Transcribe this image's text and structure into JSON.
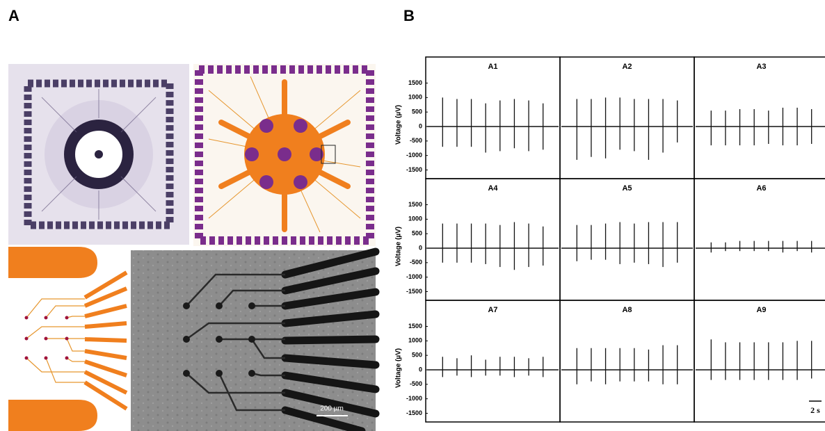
{
  "figure": {
    "panel_a_label": "A",
    "panel_b_label": "B",
    "scale_bar_a": "200 µm",
    "scale_bar_b": "2 s"
  },
  "chart_data": {
    "type": "spikes",
    "y_label": "Voltage (µV)",
    "ylim": [
      -1800,
      2400
    ],
    "yticks": [
      -1500,
      -1000,
      -500,
      0,
      500,
      1000,
      1500
    ],
    "panels": [
      {
        "title": "A1",
        "peaks": [
          1000,
          950,
          950,
          800,
          900,
          950,
          900,
          800
        ],
        "troughs": [
          -700,
          -700,
          -700,
          -900,
          -850,
          -750,
          -850,
          -800
        ]
      },
      {
        "title": "A2",
        "peaks": [
          950,
          950,
          1000,
          1000,
          950,
          950,
          950,
          900
        ],
        "troughs": [
          -1150,
          -1050,
          -1100,
          -800,
          -850,
          -1150,
          -900,
          -550
        ]
      },
      {
        "title": "A3",
        "peaks": [
          550,
          550,
          600,
          600,
          550,
          650,
          650,
          600
        ],
        "troughs": [
          -650,
          -650,
          -650,
          -650,
          -600,
          -650,
          -650,
          -600
        ]
      },
      {
        "title": "A4",
        "peaks": [
          850,
          850,
          850,
          850,
          800,
          900,
          850,
          750
        ],
        "troughs": [
          -500,
          -500,
          -500,
          -550,
          -650,
          -750,
          -650,
          -600
        ]
      },
      {
        "title": "A5",
        "peaks": [
          800,
          800,
          850,
          900,
          850,
          900,
          900,
          900
        ],
        "troughs": [
          -450,
          -400,
          -400,
          -550,
          -500,
          -550,
          -650,
          -500
        ]
      },
      {
        "title": "A6",
        "peaks": [
          200,
          200,
          250,
          250,
          250,
          250,
          250,
          250
        ],
        "troughs": [
          -150,
          -100,
          -100,
          -100,
          -100,
          -150,
          -100,
          -150
        ]
      },
      {
        "title": "A7",
        "peaks": [
          450,
          400,
          500,
          350,
          450,
          450,
          400,
          450
        ],
        "troughs": [
          -250,
          -200,
          -250,
          -200,
          -200,
          -250,
          -200,
          -250
        ]
      },
      {
        "title": "A8",
        "peaks": [
          750,
          750,
          750,
          750,
          750,
          700,
          850,
          850
        ],
        "troughs": [
          -500,
          -400,
          -500,
          -400,
          -400,
          -400,
          -500,
          -500
        ]
      },
      {
        "title": "A9",
        "peaks": [
          1050,
          950,
          950,
          950,
          950,
          950,
          1000,
          1000
        ],
        "troughs": [
          -350,
          -350,
          -350,
          -350,
          -350,
          -350,
          -350,
          -300
        ]
      }
    ]
  }
}
